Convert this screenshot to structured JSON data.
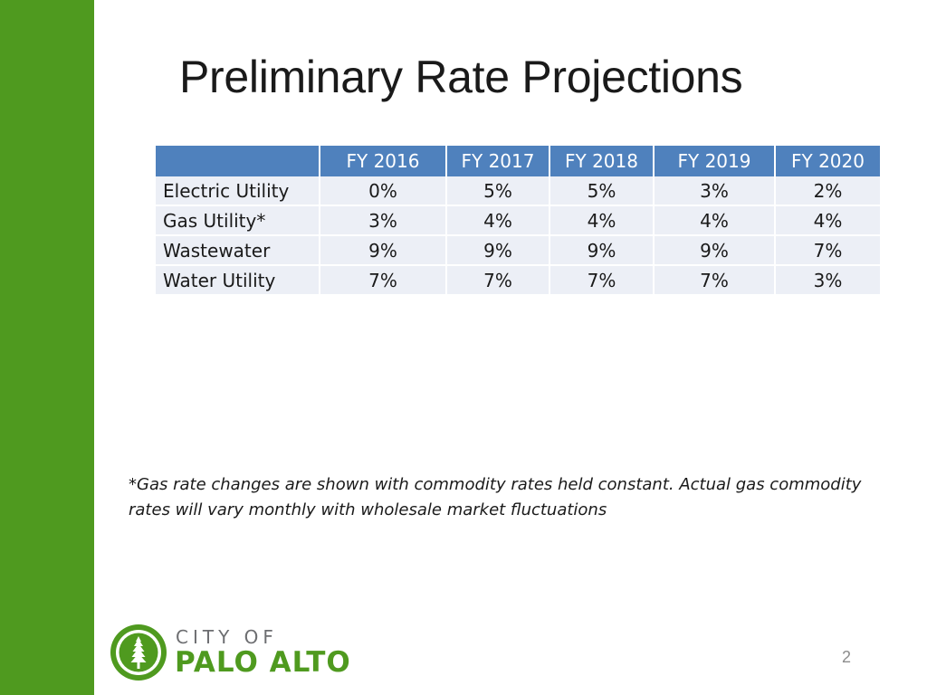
{
  "colors": {
    "sidebar": "#4f9a1f",
    "table_header": "#4f81bd",
    "table_row": "#eceff6",
    "logo_green": "#4f9a1f",
    "logo_gray": "#6d6e71"
  },
  "slide": {
    "title": "Preliminary Rate Projections",
    "page_number": "2"
  },
  "table": {
    "header": [
      "",
      "FY 2016",
      "FY 2017",
      "FY 2018",
      "FY 2019",
      "FY 2020"
    ],
    "rows": [
      {
        "label": "Electric Utility",
        "values": [
          "0%",
          "5%",
          "5%",
          "3%",
          "2%"
        ]
      },
      {
        "label": "Gas Utility*",
        "values": [
          "3%",
          "4%",
          "4%",
          "4%",
          "4%"
        ]
      },
      {
        "label": "Wastewater",
        "values": [
          "9%",
          "9%",
          "9%",
          "9%",
          "7%"
        ]
      },
      {
        "label": "Water Utility",
        "values": [
          "7%",
          "7%",
          "7%",
          "7%",
          "3%"
        ]
      }
    ]
  },
  "footnote": {
    "line1": "*Gas rate changes are shown with commodity rates held constant.  Actual gas commodity",
    "line2": "rates will vary monthly with wholesale market fluctuations"
  },
  "logo": {
    "city_of": "CITY OF",
    "name": "PALO ALTO",
    "icon": "redwood-tree-seal-icon"
  }
}
